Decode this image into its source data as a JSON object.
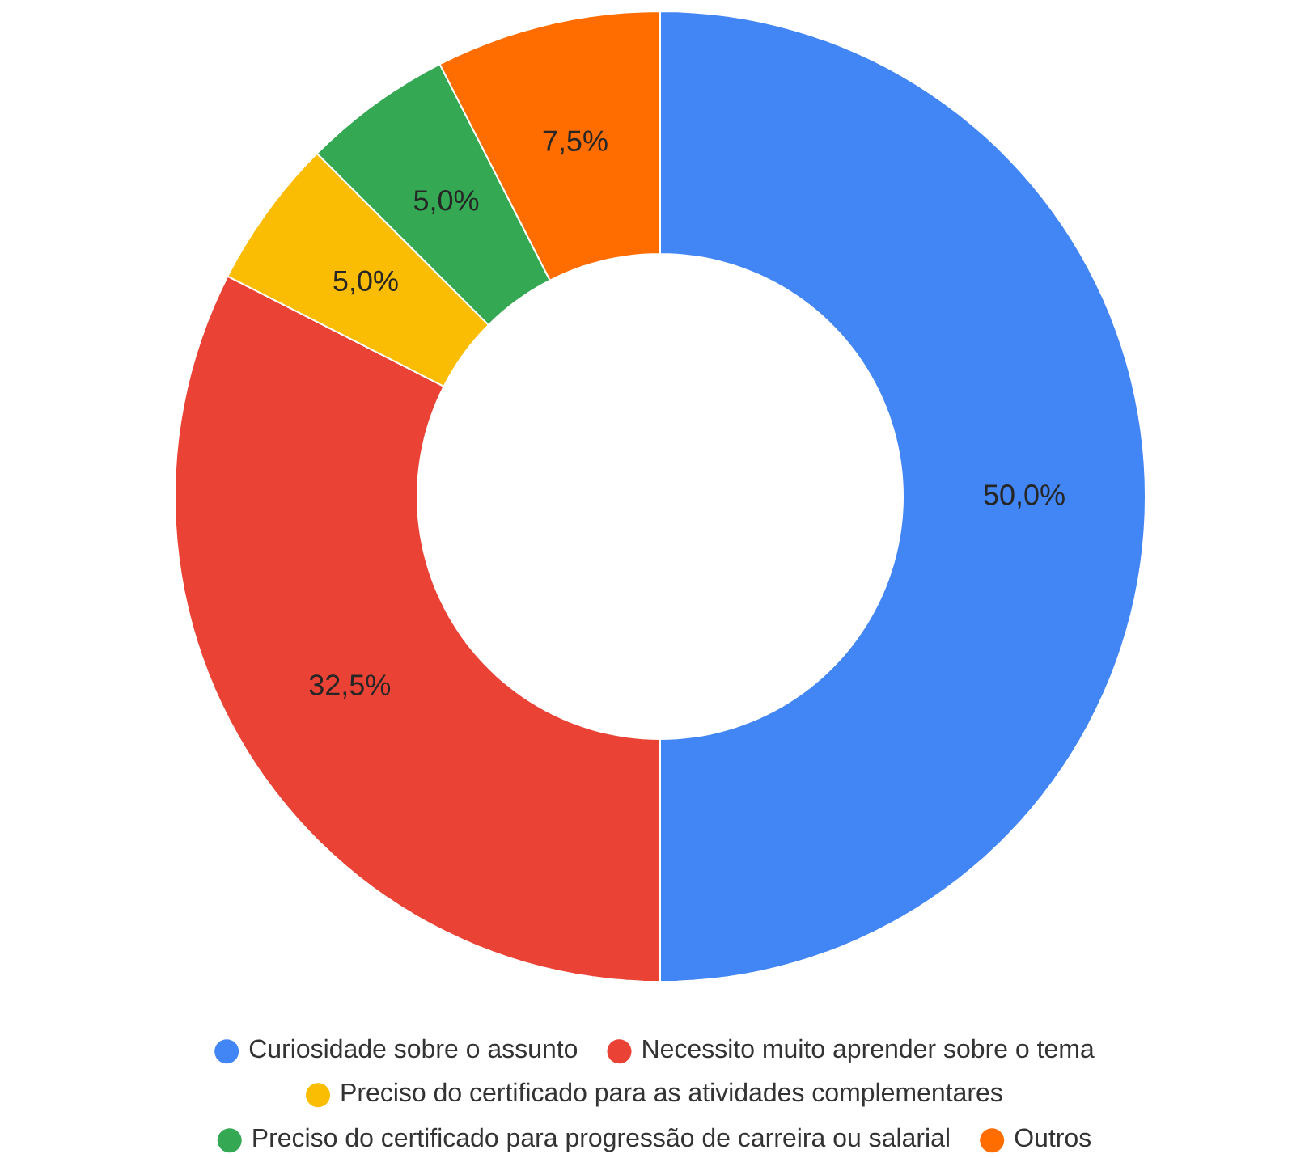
{
  "chart_data": {
    "type": "donut",
    "categories": [
      "Curiosidade sobre o assunto",
      "Necessito muito aprender sobre o tema",
      "Preciso do certificado para as atividades complementares",
      "Preciso do certificado para progressão de carreira ou salarial",
      "Outros"
    ],
    "values": [
      50.0,
      32.5,
      5.0,
      5.0,
      7.5
    ],
    "colors": [
      "#4285f4",
      "#ea4335",
      "#fbbc04",
      "#34a853",
      "#ff6d01"
    ],
    "value_labels": [
      "50,0%",
      "32,5%",
      "5,0%",
      "5,0%",
      "7,5%"
    ],
    "legend": "bottom"
  }
}
